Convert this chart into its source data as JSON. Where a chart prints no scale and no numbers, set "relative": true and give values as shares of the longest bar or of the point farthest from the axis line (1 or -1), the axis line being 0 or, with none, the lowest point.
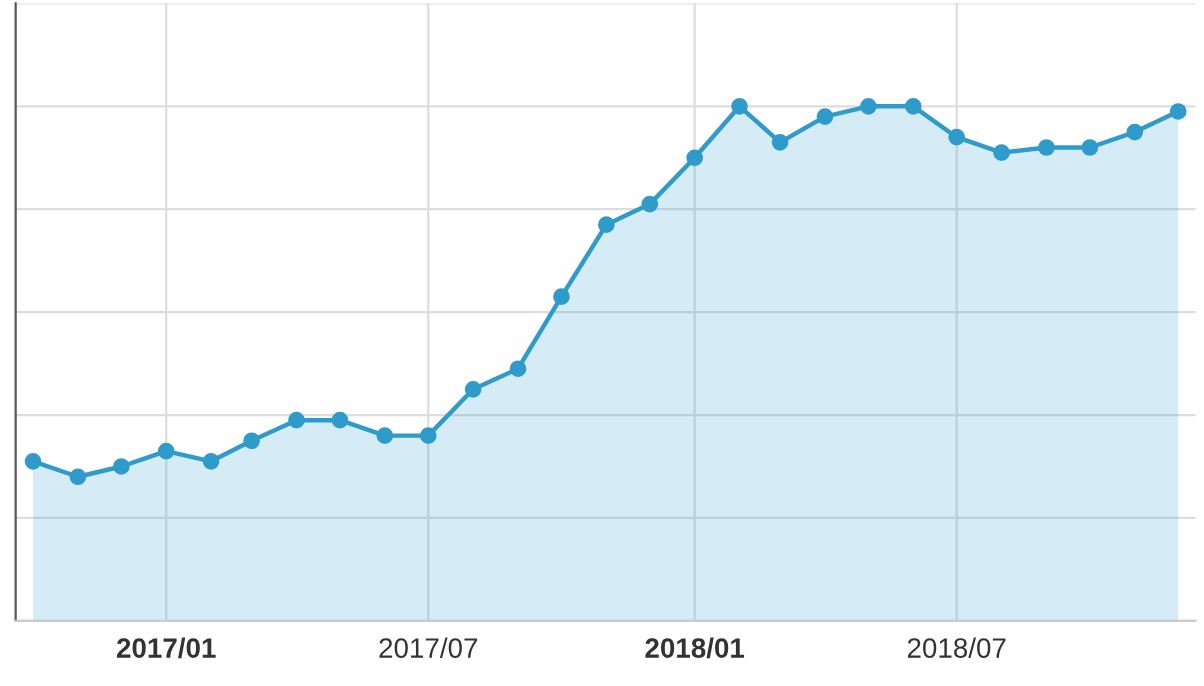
{
  "chart_data": {
    "type": "area",
    "relative": true,
    "x": [
      "2016-10",
      "2016-11",
      "2016-12",
      "2017-01",
      "2017-02",
      "2017-03",
      "2017-04",
      "2017-05",
      "2017-06",
      "2017-07",
      "2017-08",
      "2017-09",
      "2017-10",
      "2017-11",
      "2017-12",
      "2018-01",
      "2018-02",
      "2018-03",
      "2018-04",
      "2018-05",
      "2018-06",
      "2018-07",
      "2018-08",
      "2018-09",
      "2018-10",
      "2018-11",
      "2018-12"
    ],
    "series": [
      {
        "color": "#2f9bcb",
        "values": [
          0.31,
          0.28,
          0.3,
          0.33,
          0.31,
          0.35,
          0.39,
          0.39,
          0.36,
          0.36,
          0.45,
          0.49,
          0.63,
          0.77,
          0.81,
          0.9,
          1.0,
          0.93,
          0.98,
          1.0,
          1.0,
          0.94,
          0.91,
          0.92,
          0.92,
          0.95,
          0.99
        ]
      }
    ],
    "xlim": [
      "2016-09-19",
      "2018-12-13"
    ],
    "xticks": [
      {
        "value": "2017-01",
        "label": "2017/01"
      },
      {
        "value": "2017-07",
        "label": "2017/07"
      },
      {
        "value": "2018-01",
        "label": "2018/01"
      },
      {
        "value": "2018-07",
        "label": "2018/07"
      }
    ],
    "marker": "circle",
    "grid": true,
    "legend": false
  }
}
